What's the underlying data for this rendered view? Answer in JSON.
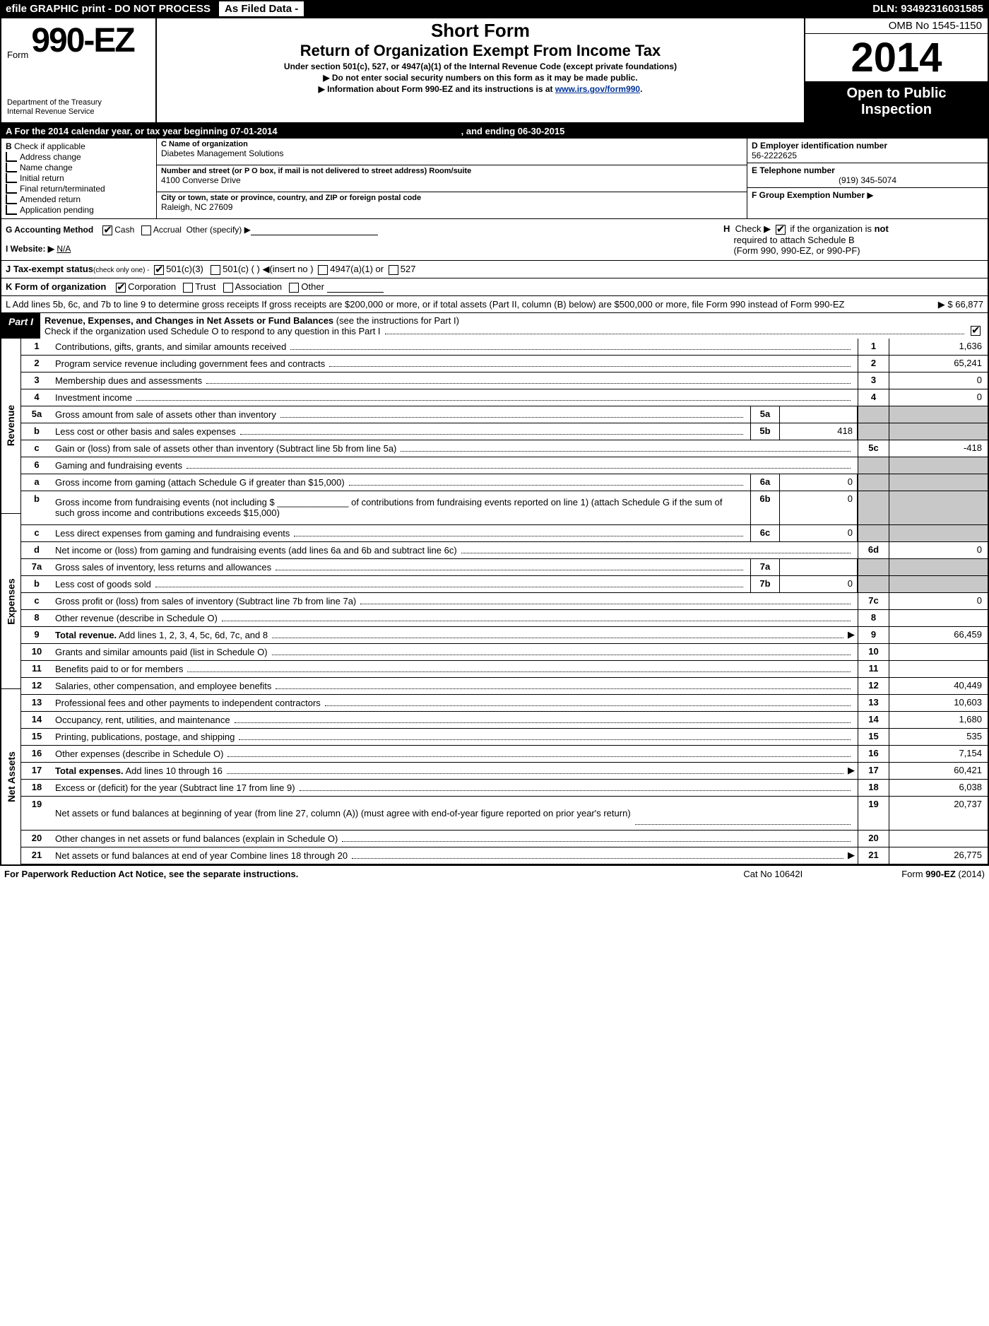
{
  "topbar": {
    "efile": "efile GRAPHIC print - DO NOT PROCESS",
    "asfiled": "As Filed Data -",
    "dln_label": "DLN:",
    "dln": "93492316031585"
  },
  "header": {
    "form_prefix": "Form",
    "form_number": "990-EZ",
    "dept1": "Department of the Treasury",
    "dept2": "Internal Revenue Service",
    "title1": "Short Form",
    "title2": "Return of Organization Exempt From Income Tax",
    "title3": "Under section 501(c), 527, or 4947(a)(1) of the Internal Revenue Code (except private foundations)",
    "bullet1": "▶ Do not enter social security numbers on this form as it may be made public.",
    "bullet2_pre": "▶ Information about Form 990-EZ and its instructions is at ",
    "bullet2_link": "www.irs.gov/form990",
    "bullet2_post": ".",
    "omb": "OMB No 1545-1150",
    "year": "2014",
    "open1": "Open to Public",
    "open2": "Inspection"
  },
  "rowA": {
    "text": "A  For the 2014 calendar year, or tax year beginning 07-01-2014",
    "end": ", and ending 06-30-2015"
  },
  "colB": {
    "title": "B",
    "subtitle": "Check if applicable",
    "items": [
      "Address change",
      "Name change",
      "Initial return",
      "Final return/terminated",
      "Amended return",
      "Application pending"
    ]
  },
  "colC": {
    "c_lab": "C Name of organization",
    "c_val": "Diabetes Management Solutions",
    "addr_lab": "Number and street (or P O box, if mail is not delivered to street address) Room/suite",
    "addr_val": "4100 Converse Drive",
    "city_lab": "City or town, state or province, country, and ZIP or foreign postal code",
    "city_val": "Raleigh, NC  27609"
  },
  "colD": {
    "d_lab": "D Employer identification number",
    "d_val": "56-2222625",
    "e_lab": "E Telephone number",
    "e_val": "(919) 345-5074",
    "f_lab": "F Group Exemption Number",
    "f_arrow": "▶"
  },
  "G": {
    "label": "G Accounting Method",
    "opts": [
      "Cash",
      "Accrual",
      "Other (specify) ▶"
    ]
  },
  "H": {
    "text1": "Check ▶",
    "text2": "if the organization is",
    "not": "not",
    "text3": "required to attach Schedule B",
    "text4": "(Form 990, 990-EZ, or 990-PF)"
  },
  "I": {
    "label": "I Website: ▶",
    "val": "N/A"
  },
  "J": {
    "label": "J Tax-exempt status",
    "sub": "(check only one) -",
    "o1": "501(c)(3)",
    "o2": "501(c) (   ) ◀(insert no )",
    "o3": "4947(a)(1) or",
    "o4": "527"
  },
  "K": {
    "label": "K Form of organization",
    "opts": [
      "Corporation",
      "Trust",
      "Association",
      "Other"
    ]
  },
  "L": {
    "text": "L Add lines 5b, 6c, and 7b to line 9 to determine gross receipts  If gross receipts are $200,000 or more, or if total assets (Part II, column (B) below) are $500,000 or more, file Form 990 instead of Form 990-EZ",
    "arrow": "▶",
    "val": "$ 66,877"
  },
  "partI": {
    "tab": "Part I",
    "title": "Revenue, Expenses, and Changes in Net Assets or Fund Balances",
    "titlesub": " (see the instructions for Part I)",
    "row2": "Check if the organization used Schedule O to respond to any question in this Part I"
  },
  "sides": {
    "rev": "Revenue",
    "exp": "Expenses",
    "na": "Net Assets"
  },
  "lines": [
    {
      "n": "1",
      "d": "Contributions, gifts, grants, and similar amounts received",
      "ln": "1",
      "v": "1,636"
    },
    {
      "n": "2",
      "d": "Program service revenue including government fees and contracts",
      "ln": "2",
      "v": "65,241"
    },
    {
      "n": "3",
      "d": "Membership dues and assessments",
      "ln": "3",
      "v": "0"
    },
    {
      "n": "4",
      "d": "Investment income",
      "ln": "4",
      "v": "0"
    },
    {
      "n": "5a",
      "d": "Gross amount from sale of assets other than inventory",
      "mini": "5a",
      "mv": "",
      "shade": true
    },
    {
      "n": "b",
      "d": "Less  cost or other basis and sales expenses",
      "mini": "5b",
      "mv": "418",
      "shade": true
    },
    {
      "n": "c",
      "d": "Gain or (loss) from sale of assets other than inventory (Subtract line 5b from line 5a)",
      "ln": "5c",
      "v": "-418"
    },
    {
      "n": "6",
      "d": "Gaming and fundraising events",
      "shade": true,
      "noval": true
    },
    {
      "n": "a",
      "d": "Gross income from gaming (attach Schedule G if greater than $15,000)",
      "mini": "6a",
      "mv": "0",
      "shade": true
    },
    {
      "n": "b",
      "d": "Gross income from fundraising events (not including $ ______________ of contributions from fundraising events reported on line 1) (attach Schedule G if the sum of such gross income and contributions exceeds $15,000)",
      "mini": "6b",
      "mv": "0",
      "shade": true,
      "tall": true
    },
    {
      "n": "c",
      "d": "Less  direct expenses from gaming and fundraising events",
      "mini": "6c",
      "mv": "0",
      "shade": true
    },
    {
      "n": "d",
      "d": "Net income or (loss) from gaming and fundraising events (add lines 6a and 6b and subtract line 6c)",
      "ln": "6d",
      "v": "0"
    },
    {
      "n": "7a",
      "d": "Gross sales of inventory, less returns and allowances",
      "mini": "7a",
      "mv": "",
      "shade": true
    },
    {
      "n": "b",
      "d": "Less  cost of goods sold",
      "mini": "7b",
      "mv": "0",
      "shade": true
    },
    {
      "n": "c",
      "d": "Gross profit or (loss) from sales of inventory (Subtract line 7b from line 7a)",
      "ln": "7c",
      "v": "0"
    },
    {
      "n": "8",
      "d": "Other revenue (describe in Schedule O)",
      "ln": "8",
      "v": ""
    },
    {
      "n": "9",
      "d": "Total revenue. Add lines 1, 2, 3, 4, 5c, 6d, 7c, and 8",
      "ln": "9",
      "v": "66,459",
      "bold": true,
      "arr": true
    },
    {
      "n": "10",
      "d": "Grants and similar amounts paid (list in Schedule O)",
      "ln": "10",
      "v": ""
    },
    {
      "n": "11",
      "d": "Benefits paid to or for members",
      "ln": "11",
      "v": ""
    },
    {
      "n": "12",
      "d": "Salaries, other compensation, and employee benefits",
      "ln": "12",
      "v": "40,449"
    },
    {
      "n": "13",
      "d": "Professional fees and other payments to independent contractors",
      "ln": "13",
      "v": "10,603"
    },
    {
      "n": "14",
      "d": "Occupancy, rent, utilities, and maintenance",
      "ln": "14",
      "v": "1,680"
    },
    {
      "n": "15",
      "d": "Printing, publications, postage, and shipping",
      "ln": "15",
      "v": "535"
    },
    {
      "n": "16",
      "d": "Other expenses (describe in Schedule O)",
      "ln": "16",
      "v": "7,154"
    },
    {
      "n": "17",
      "d": "Total expenses. Add lines 10 through 16",
      "ln": "17",
      "v": "60,421",
      "bold": true,
      "arr": true
    },
    {
      "n": "18",
      "d": "Excess or (deficit) for the year (Subtract line 17 from line 9)",
      "ln": "18",
      "v": "6,038"
    },
    {
      "n": "19",
      "d": "Net assets or fund balances at beginning of year (from line 27, column (A)) (must agree with end-of-year figure reported on prior year's return)",
      "ln": "19",
      "v": "20,737",
      "tall": true
    },
    {
      "n": "20",
      "d": "Other changes in net assets or fund balances (explain in Schedule O)",
      "ln": "20",
      "v": ""
    },
    {
      "n": "21",
      "d": "Net assets or fund balances at end of year  Combine lines 18 through 20",
      "ln": "21",
      "v": "26,775",
      "arr": true
    }
  ],
  "footer": {
    "left": "For Paperwork Reduction Act Notice, see the separate instructions.",
    "mid": "Cat No 10642I",
    "right": "Form 990-EZ (2014)"
  },
  "seg_heights": {
    "rev": 430,
    "exp": 196,
    "na": 118
  }
}
